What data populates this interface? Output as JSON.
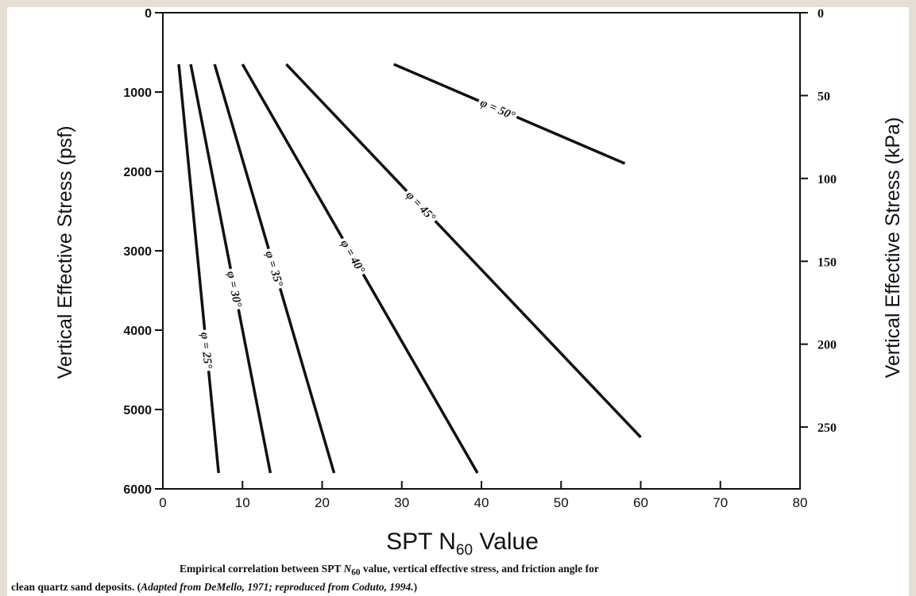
{
  "chart_data": {
    "type": "line",
    "xlabel_main": "SPT N",
    "xlabel_sub": "60",
    "xlabel_tail": " Value",
    "ylabel_left": "Vertical Effective Stress (psf)",
    "ylabel_right": "Vertical Effective Stress (kPa)",
    "xlim": [
      0,
      80
    ],
    "ylim_left": [
      0,
      6000
    ],
    "ylim_right_kpa": [
      0,
      287.3
    ],
    "y_inverted": true,
    "x_ticks": [
      0,
      10,
      20,
      30,
      40,
      50,
      60,
      70,
      80
    ],
    "y_ticks_left": [
      0,
      1000,
      2000,
      3000,
      4000,
      5000,
      6000
    ],
    "y_ticks_right": [
      0,
      50,
      100,
      150,
      200,
      250
    ],
    "y_tick_labels_right": [
      "0",
      "50",
      "100",
      "150",
      "200",
      "250"
    ],
    "grid": false,
    "series": [
      {
        "name": "φ = 25°",
        "points": [
          [
            2,
            650
          ],
          [
            7,
            5800
          ]
        ]
      },
      {
        "name": "φ = 30°",
        "points": [
          [
            3.5,
            650
          ],
          [
            13.5,
            5800
          ]
        ]
      },
      {
        "name": "φ = 35°",
        "points": [
          [
            6.5,
            650
          ],
          [
            21.5,
            5800
          ]
        ]
      },
      {
        "name": "φ = 40°",
        "points": [
          [
            10,
            650
          ],
          [
            39.5,
            5800
          ]
        ]
      },
      {
        "name": "φ = 45°",
        "points": [
          [
            15.5,
            650
          ],
          [
            60,
            5350
          ]
        ]
      },
      {
        "name": "φ = 50°",
        "points": [
          [
            29,
            650
          ],
          [
            58,
            1900
          ]
        ]
      }
    ]
  },
  "caption": {
    "line1_a": "Empirical correlation between SPT ",
    "line1_n": "N",
    "line1_sub": "60",
    "line1_b": " value, vertical effective stress, and friction angle for",
    "line2_a": "clean quartz sand deposits. (",
    "line2_it": "Adapted from DeMello, 1971; reproduced from Coduto, 1994.",
    "line2_b": ")"
  }
}
